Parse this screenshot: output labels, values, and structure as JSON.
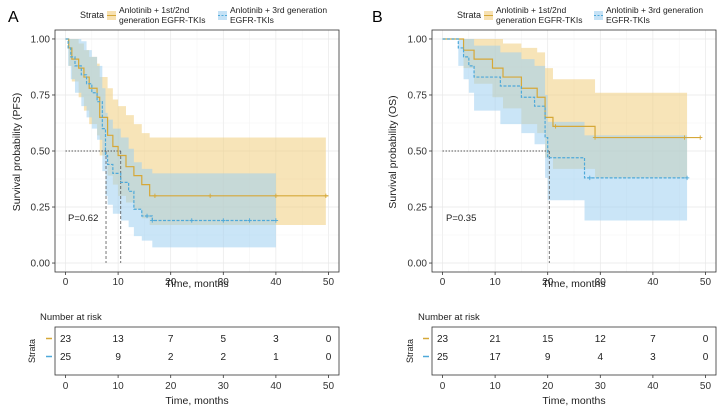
{
  "colors": {
    "group1": "#d6a838",
    "group1_fill": "#f1cd7e",
    "group2": "#4fa9d9",
    "group2_fill": "#9ecff0",
    "grid": "#e8e8e8",
    "frame": "#333333",
    "ref": "#555555"
  },
  "panels": [
    {
      "letter": "A",
      "legend": {
        "title": "Strata",
        "g1": [
          "Anlotinib + 1st/2nd",
          "generation EGFR-TKIs"
        ],
        "g2": [
          "Anlotinib + 3rd generation",
          "EGFR-TKIs"
        ]
      },
      "pvalue": "P=0.62",
      "risk_title": "Number at risk",
      "risk_strata_label": "Strata"
    },
    {
      "letter": "B",
      "legend": {
        "title": "Strata",
        "g1": [
          "Anlotinib + 1st/2nd",
          "generation EGFR-TKIs"
        ],
        "g2": [
          "Anlotinib + 3rd generation",
          "EGFR-TKIs"
        ]
      },
      "pvalue": "P=0.35",
      "risk_title": "Number at risk",
      "risk_strata_label": "Strata"
    }
  ],
  "chart_data": [
    {
      "type": "line",
      "subtype": "kaplan-meier",
      "title": "A",
      "xlabel": "Time, months",
      "ylabel": "Survival probability (PFS)",
      "xlim": [
        -2,
        52
      ],
      "ylim": [
        -0.04,
        1.04
      ],
      "xticks": [
        0,
        10,
        20,
        30,
        40,
        50
      ],
      "xtick_labels": [
        "0",
        "10",
        "20",
        "30",
        "40",
        "50"
      ],
      "yticks": [
        0,
        0.25,
        0.5,
        0.75,
        1
      ],
      "ytick_labels": [
        "0.00",
        "0.25",
        "0.50",
        "0.75",
        "1.00"
      ],
      "series": [
        {
          "name": "Anlotinib + 1st/2nd generation EGFR-TKIs",
          "color_key": "group1",
          "steps": [
            [
              0,
              1.0
            ],
            [
              0.6,
              0.96
            ],
            [
              1.2,
              0.91
            ],
            [
              2.5,
              0.87
            ],
            [
              3.5,
              0.83
            ],
            [
              4.5,
              0.78
            ],
            [
              6,
              0.74
            ],
            [
              6.5,
              0.65
            ],
            [
              8,
              0.57
            ],
            [
              9,
              0.52
            ],
            [
              10,
              0.48
            ],
            [
              11.5,
              0.43
            ],
            [
              13,
              0.39
            ],
            [
              14.5,
              0.35
            ],
            [
              16,
              0.3
            ],
            [
              50,
              0.3
            ]
          ],
          "ci_upper": [
            [
              0,
              1.0
            ],
            [
              0.6,
              1.0
            ],
            [
              1.2,
              1.0
            ],
            [
              2.5,
              0.98
            ],
            [
              3.5,
              0.95
            ],
            [
              4.5,
              0.92
            ],
            [
              6,
              0.89
            ],
            [
              6.5,
              0.83
            ],
            [
              8,
              0.78
            ],
            [
              9,
              0.73
            ],
            [
              10,
              0.7
            ],
            [
              11.5,
              0.66
            ],
            [
              13,
              0.62
            ],
            [
              14.5,
              0.58
            ],
            [
              16,
              0.56
            ],
            [
              49.5,
              0.56
            ]
          ],
          "ci_lower": [
            [
              0,
              1.0
            ],
            [
              0.6,
              0.88
            ],
            [
              1.2,
              0.81
            ],
            [
              2.5,
              0.74
            ],
            [
              3.5,
              0.68
            ],
            [
              4.5,
              0.62
            ],
            [
              6,
              0.57
            ],
            [
              6.5,
              0.48
            ],
            [
              8,
              0.39
            ],
            [
              9,
              0.35
            ],
            [
              10,
              0.3
            ],
            [
              11.5,
              0.27
            ],
            [
              13,
              0.24
            ],
            [
              14.5,
              0.2
            ],
            [
              16,
              0.17
            ],
            [
              49.5,
              0.17
            ]
          ],
          "censor_times": [
            17,
            27.5,
            40,
            49.5
          ]
        },
        {
          "name": "Anlotinib + 3rd generation EGFR-TKIs",
          "color_key": "group2",
          "steps": [
            [
              0,
              1.0
            ],
            [
              0.5,
              0.96
            ],
            [
              1,
              0.92
            ],
            [
              1.8,
              0.88
            ],
            [
              3,
              0.84
            ],
            [
              4,
              0.8
            ],
            [
              5,
              0.76
            ],
            [
              6,
              0.72
            ],
            [
              7,
              0.6
            ],
            [
              7.6,
              0.48
            ],
            [
              8,
              0.44
            ],
            [
              9,
              0.4
            ],
            [
              10.5,
              0.36
            ],
            [
              12,
              0.32
            ],
            [
              13,
              0.24
            ],
            [
              14.5,
              0.21
            ],
            [
              16.5,
              0.19
            ],
            [
              40,
              0.19
            ]
          ],
          "ci_upper": [
            [
              0,
              1.0
            ],
            [
              0.5,
              1.0
            ],
            [
              1,
              1.0
            ],
            [
              1.8,
              1.0
            ],
            [
              3,
              0.99
            ],
            [
              4,
              0.95
            ],
            [
              5,
              0.92
            ],
            [
              6,
              0.88
            ],
            [
              7,
              0.78
            ],
            [
              7.6,
              0.67
            ],
            [
              8,
              0.64
            ],
            [
              9,
              0.6
            ],
            [
              10.5,
              0.56
            ],
            [
              12,
              0.51
            ],
            [
              13,
              0.45
            ],
            [
              14.5,
              0.42
            ],
            [
              16.5,
              0.4
            ],
            [
              40,
              0.4
            ]
          ],
          "ci_lower": [
            [
              0,
              1.0
            ],
            [
              0.5,
              0.88
            ],
            [
              1,
              0.82
            ],
            [
              1.8,
              0.76
            ],
            [
              3,
              0.7
            ],
            [
              4,
              0.65
            ],
            [
              5,
              0.6
            ],
            [
              6,
              0.55
            ],
            [
              7,
              0.41
            ],
            [
              7.6,
              0.3
            ],
            [
              8,
              0.26
            ],
            [
              9,
              0.22
            ],
            [
              10.5,
              0.19
            ],
            [
              12,
              0.16
            ],
            [
              13,
              0.12
            ],
            [
              14.5,
              0.1
            ],
            [
              16.5,
              0.07
            ],
            [
              40,
              0.07
            ]
          ],
          "censor_times": [
            15.5,
            16.5,
            24,
            30,
            35,
            40
          ]
        }
      ],
      "median_reference": {
        "y": 0.5,
        "times": [
          7.7,
          10.5
        ]
      },
      "risk_table": {
        "title": "Number at risk",
        "times": [
          0,
          10,
          20,
          30,
          40,
          50
        ],
        "rows": [
          [
            23,
            13,
            7,
            5,
            3,
            0
          ],
          [
            25,
            9,
            2,
            2,
            1,
            0
          ]
        ]
      }
    },
    {
      "type": "line",
      "subtype": "kaplan-meier",
      "title": "B",
      "xlabel": "Time, months",
      "ylabel": "Survival probability (OS)",
      "xlim": [
        -2,
        52
      ],
      "ylim": [
        -0.04,
        1.04
      ],
      "xticks": [
        0,
        10,
        20,
        30,
        40,
        50
      ],
      "xtick_labels": [
        "0",
        "10",
        "20",
        "30",
        "40",
        "50"
      ],
      "yticks": [
        0,
        0.25,
        0.5,
        0.75,
        1
      ],
      "ytick_labels": [
        "0.00",
        "0.25",
        "0.50",
        "0.75",
        "1.00"
      ],
      "series": [
        {
          "name": "Anlotinib + 1st/2nd generation EGFR-TKIs",
          "color_key": "group1",
          "steps": [
            [
              0,
              1.0
            ],
            [
              4,
              0.95
            ],
            [
              6,
              0.91
            ],
            [
              9.5,
              0.87
            ],
            [
              11.5,
              0.83
            ],
            [
              15,
              0.78
            ],
            [
              18,
              0.74
            ],
            [
              19.5,
              0.65
            ],
            [
              21,
              0.61
            ],
            [
              29,
              0.56
            ],
            [
              49,
              0.56
            ]
          ],
          "ci_upper": [
            [
              0,
              1.0
            ],
            [
              4,
              1.0
            ],
            [
              6,
              1.0
            ],
            [
              9.5,
              1.0
            ],
            [
              11.5,
              0.98
            ],
            [
              15,
              0.96
            ],
            [
              18,
              0.94
            ],
            [
              19.5,
              0.87
            ],
            [
              21,
              0.82
            ],
            [
              29,
              0.76
            ],
            [
              46.5,
              0.76
            ]
          ],
          "ci_lower": [
            [
              0,
              1.0
            ],
            [
              4,
              0.87
            ],
            [
              6,
              0.8
            ],
            [
              9.5,
              0.74
            ],
            [
              11.5,
              0.69
            ],
            [
              15,
              0.62
            ],
            [
              18,
              0.58
            ],
            [
              19.5,
              0.47
            ],
            [
              21,
              0.42
            ],
            [
              29,
              0.38
            ],
            [
              46.5,
              0.38
            ]
          ],
          "censor_times": [
            21.5,
            29,
            46,
            49
          ]
        },
        {
          "name": "Anlotinib + 3rd generation EGFR-TKIs",
          "color_key": "group2",
          "steps": [
            [
              0,
              1.0
            ],
            [
              3,
              0.96
            ],
            [
              4,
              0.92
            ],
            [
              5,
              0.88
            ],
            [
              6,
              0.83
            ],
            [
              11,
              0.79
            ],
            [
              15,
              0.74
            ],
            [
              17.5,
              0.7
            ],
            [
              19.5,
              0.56
            ],
            [
              20,
              0.47
            ],
            [
              27,
              0.38
            ],
            [
              46.5,
              0.38
            ]
          ],
          "ci_upper": [
            [
              0,
              1.0
            ],
            [
              3,
              1.0
            ],
            [
              4,
              1.0
            ],
            [
              5,
              1.0
            ],
            [
              6,
              0.97
            ],
            [
              11,
              0.94
            ],
            [
              15,
              0.91
            ],
            [
              17.5,
              0.88
            ],
            [
              19.5,
              0.75
            ],
            [
              20,
              0.63
            ],
            [
              27,
              0.57
            ],
            [
              46.5,
              0.57
            ]
          ],
          "ci_lower": [
            [
              0,
              1.0
            ],
            [
              3,
              0.88
            ],
            [
              4,
              0.82
            ],
            [
              5,
              0.76
            ],
            [
              6,
              0.68
            ],
            [
              11,
              0.62
            ],
            [
              15,
              0.58
            ],
            [
              17.5,
              0.53
            ],
            [
              19.5,
              0.38
            ],
            [
              20,
              0.28
            ],
            [
              27,
              0.19
            ],
            [
              46.5,
              0.19
            ]
          ],
          "censor_times": [
            28,
            46.5
          ]
        }
      ],
      "median_reference": {
        "y": 0.5,
        "times": [
          20.3
        ]
      },
      "risk_table": {
        "title": "Number at risk",
        "times": [
          0,
          10,
          20,
          30,
          40,
          50
        ],
        "rows": [
          [
            23,
            21,
            15,
            12,
            7,
            0
          ],
          [
            25,
            17,
            9,
            4,
            3,
            0
          ]
        ]
      }
    }
  ]
}
